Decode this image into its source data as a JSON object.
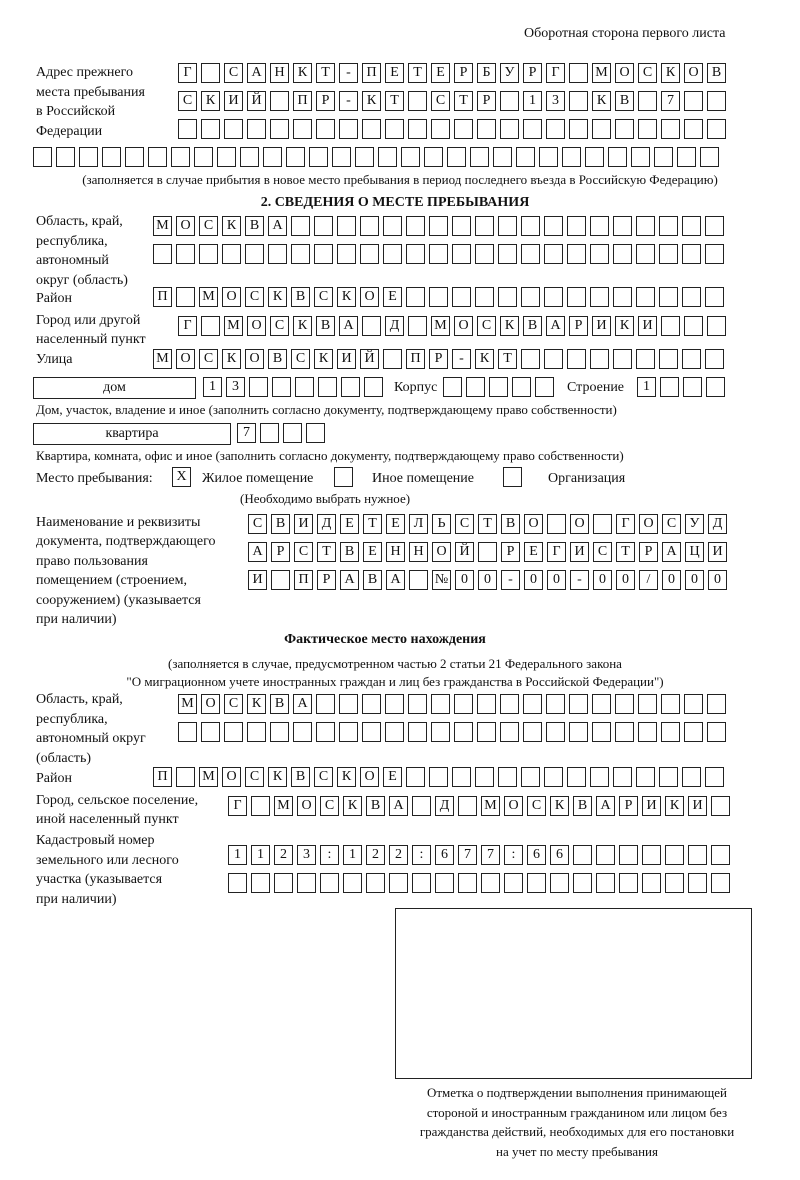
{
  "header": {
    "page_side": "Оборотная сторона первого листа"
  },
  "prev_address": {
    "label": [
      "Адрес прежнего",
      "места пребывания",
      "в Российской",
      "Федерации"
    ],
    "rows": [
      [
        "Г",
        "",
        "С",
        "А",
        "Н",
        "К",
        "Т",
        "-",
        "П",
        "Е",
        "Т",
        "Е",
        "Р",
        "Б",
        "У",
        "Р",
        "Г",
        "",
        "М",
        "О",
        "С",
        "К",
        "О",
        "В"
      ],
      [
        "С",
        "К",
        "И",
        "Й",
        "",
        "П",
        "Р",
        "-",
        "К",
        "Т",
        "",
        "С",
        "Т",
        "Р",
        "",
        "1",
        "3",
        "",
        "К",
        "В",
        "",
        "7",
        "",
        ""
      ],
      [
        "",
        "",
        "",
        "",
        "",
        "",
        "",
        "",
        "",
        "",
        "",
        "",
        "",
        "",
        "",
        "",
        "",
        "",
        "",
        "",
        "",
        "",
        "",
        ""
      ],
      [
        "",
        "",
        "",
        "",
        "",
        "",
        "",
        "",
        "",
        "",
        "",
        "",
        "",
        "",
        "",
        "",
        "",
        "",
        "",
        "",
        "",
        "",
        "",
        "",
        "",
        "",
        "",
        "",
        "",
        ""
      ]
    ],
    "note": "(заполняется в случае прибытия в новое место пребывания в период последнего въезда в Российскую Федерацию)"
  },
  "section2": {
    "title": "2. СВЕДЕНИЯ О МЕСТЕ ПРЕБЫВАНИЯ",
    "region_label": [
      "Область, край,",
      "республика,",
      "автономный",
      "округ (область)"
    ],
    "region_rows": [
      [
        "М",
        "О",
        "С",
        "К",
        "В",
        "А",
        "",
        "",
        "",
        "",
        "",
        "",
        "",
        "",
        "",
        "",
        "",
        "",
        "",
        "",
        "",
        "",
        "",
        "",
        ""
      ],
      [
        "",
        "",
        "",
        "",
        "",
        "",
        "",
        "",
        "",
        "",
        "",
        "",
        "",
        "",
        "",
        "",
        "",
        "",
        "",
        "",
        "",
        "",
        "",
        "",
        ""
      ]
    ],
    "district_label": "Район",
    "district_row": [
      "П",
      "",
      "М",
      "О",
      "С",
      "К",
      "В",
      "С",
      "К",
      "О",
      "Е",
      "",
      "",
      "",
      "",
      "",
      "",
      "",
      "",
      "",
      "",
      "",
      "",
      "",
      ""
    ],
    "city_label": [
      "Город или другой",
      "населенный пункт"
    ],
    "city_row": [
      "Г",
      "",
      "М",
      "О",
      "С",
      "К",
      "В",
      "А",
      "",
      "Д",
      "",
      "М",
      "О",
      "С",
      "К",
      "В",
      "А",
      "Р",
      "И",
      "К",
      "И",
      "",
      "",
      ""
    ],
    "street_label": "Улица",
    "street_row": [
      "М",
      "О",
      "С",
      "К",
      "О",
      "В",
      "С",
      "К",
      "И",
      "Й",
      "",
      "П",
      "Р",
      "-",
      "К",
      "Т",
      "",
      "",
      "",
      "",
      "",
      "",
      "",
      "",
      ""
    ],
    "house_type": "дом",
    "house_cells": [
      "1",
      "3",
      "",
      "",
      "",
      "",
      "",
      ""
    ],
    "building_label": "Корпус",
    "building_cells": [
      "",
      "",
      "",
      "",
      ""
    ],
    "structure_label": "Строение",
    "structure_cells": [
      "1",
      "",
      "",
      ""
    ],
    "house_note": "Дом, участок, владение и иное (заполнить согласно документу, подтверждающему право собственности)",
    "apt_type": "квартира",
    "apt_cells": [
      "7",
      "",
      "",
      ""
    ],
    "apt_note": "Квартира, комната, офис и иное (заполнить согласно документу, подтверждающему право собственности)",
    "stay_place_label": "Место пребывания:",
    "options": [
      {
        "mark": "X",
        "label": "Жилое помещение"
      },
      {
        "mark": "",
        "label": "Иное помещение"
      },
      {
        "mark": "",
        "label": "Организация"
      }
    ],
    "choose_note": "(Необходимо выбрать нужное)",
    "doc_label": [
      "Наименование и реквизиты",
      "документа, подтверждающего",
      "право пользования",
      "помещением (строением,",
      "сооружением) (указывается",
      "при наличии)"
    ],
    "doc_rows": [
      [
        "С",
        "В",
        "И",
        "Д",
        "Е",
        "Т",
        "Е",
        "Л",
        "Ь",
        "С",
        "Т",
        "В",
        "О",
        "",
        "О",
        "",
        "Г",
        "О",
        "С",
        "У",
        "Д"
      ],
      [
        "А",
        "Р",
        "С",
        "Т",
        "В",
        "Е",
        "Н",
        "Н",
        "О",
        "Й",
        "",
        "Р",
        "Е",
        "Г",
        "И",
        "С",
        "Т",
        "Р",
        "А",
        "Ц",
        "И"
      ],
      [
        "И",
        "",
        "П",
        "Р",
        "А",
        "В",
        "А",
        "",
        "№",
        "0",
        "0",
        "-",
        "0",
        "0",
        "-",
        "0",
        "0",
        "/",
        "0",
        "0",
        "0"
      ]
    ]
  },
  "actual": {
    "title": "Фактическое место нахождения",
    "note": [
      "(заполняется в случае, предусмотренном частью 2 статьи 21 Федерального закона",
      "\"О миграционном учете иностранных граждан и лиц без гражданства в Российской Федерации\")"
    ],
    "region_label": [
      "Область, край,",
      "республика,",
      "автономный округ",
      "(область)"
    ],
    "region_rows": [
      [
        "М",
        "О",
        "С",
        "К",
        "В",
        "А",
        "",
        "",
        "",
        "",
        "",
        "",
        "",
        "",
        "",
        "",
        "",
        "",
        "",
        "",
        "",
        "",
        "",
        ""
      ],
      [
        "",
        "",
        "",
        "",
        "",
        "",
        "",
        "",
        "",
        "",
        "",
        "",
        "",
        "",
        "",
        "",
        "",
        "",
        "",
        "",
        "",
        "",
        "",
        ""
      ]
    ],
    "district_label": "Район",
    "district_row": [
      "П",
      "",
      "М",
      "О",
      "С",
      "К",
      "В",
      "С",
      "К",
      "О",
      "Е",
      "",
      "",
      "",
      "",
      "",
      "",
      "",
      "",
      "",
      "",
      "",
      "",
      "",
      ""
    ],
    "city_label": [
      "Город, сельское поселение,",
      "иной населенный пункт"
    ],
    "city_row": [
      "Г",
      "",
      "М",
      "О",
      "С",
      "К",
      "В",
      "А",
      "",
      "Д",
      "",
      "М",
      "О",
      "С",
      "К",
      "В",
      "А",
      "Р",
      "И",
      "К",
      "И",
      ""
    ],
    "cadastre_label": [
      "Кадастровый номер",
      "земельного или лесного",
      "участка (указывается",
      "при наличии)"
    ],
    "cadastre_rows": [
      [
        "1",
        "1",
        "2",
        "3",
        ":",
        "1",
        "2",
        "2",
        ":",
        "6",
        "7",
        "7",
        ":",
        "6",
        "6",
        "",
        "",
        "",
        "",
        "",
        "",
        ""
      ],
      [
        "",
        "",
        "",
        "",
        "",
        "",
        "",
        "",
        "",
        "",
        "",
        "",
        "",
        "",
        "",
        "",
        "",
        "",
        "",
        "",
        "",
        ""
      ]
    ]
  },
  "stamp": {
    "caption": [
      "Отметка о подтверждении выполнения принимающей",
      "стороной и иностранным гражданином или лицом без",
      "гражданства действий, необходимых для его постановки",
      "на учет по месту пребывания"
    ]
  }
}
